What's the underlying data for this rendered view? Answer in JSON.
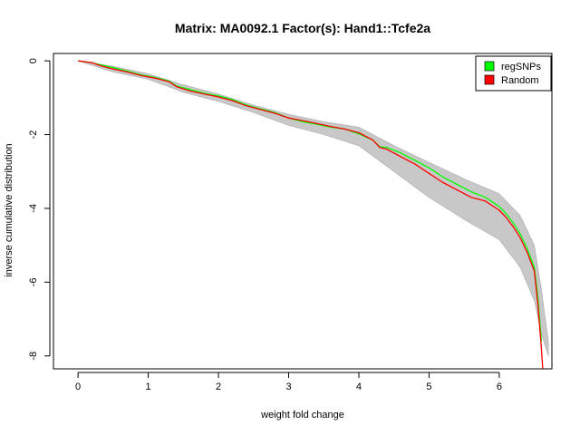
{
  "chart_data": {
    "type": "line",
    "title": "Matrix: MA0092.1 Factor(s): Hand1::Tcfe2a",
    "xlabel": "weight fold change",
    "ylabel": "inverse cumulative distribution",
    "xlim": [
      -0.35,
      6.75
    ],
    "ylim": [
      -8.35,
      0.2
    ],
    "xticks": [
      0,
      1,
      2,
      3,
      4,
      5,
      6
    ],
    "yticks": [
      0,
      -2,
      -4,
      -6,
      -8
    ],
    "grid": false,
    "legend_position": "top-right",
    "legend": [
      {
        "label": "regSNPs",
        "color": "#00ff00"
      },
      {
        "label": "Random",
        "color": "#ff0000"
      }
    ],
    "background_band": {
      "name": "random permutations",
      "color": "#bebebe",
      "x": [
        0.0,
        0.5,
        1.0,
        1.5,
        2.0,
        2.5,
        3.0,
        3.5,
        4.0,
        4.5,
        5.0,
        5.5,
        6.0,
        6.3,
        6.5,
        6.6,
        6.7
      ],
      "upper": [
        0.0,
        -0.15,
        -0.35,
        -0.65,
        -0.9,
        -1.2,
        -1.45,
        -1.65,
        -1.8,
        -2.3,
        -2.75,
        -3.2,
        -3.6,
        -4.2,
        -5.0,
        -6.2,
        -7.6
      ],
      "lower": [
        0.0,
        -0.3,
        -0.5,
        -0.85,
        -1.1,
        -1.4,
        -1.75,
        -2.0,
        -2.3,
        -3.0,
        -3.7,
        -4.3,
        -4.85,
        -5.6,
        -6.5,
        -7.4,
        -8.0
      ]
    },
    "series": [
      {
        "name": "regSNPs",
        "color": "#00ff00",
        "x": [
          0.0,
          0.2,
          0.35,
          0.5,
          0.7,
          0.9,
          1.1,
          1.3,
          1.4,
          1.6,
          1.8,
          2.0,
          2.2,
          2.4,
          2.6,
          2.8,
          3.0,
          3.2,
          3.4,
          3.6,
          3.8,
          4.0,
          4.2,
          4.3,
          4.4,
          4.6,
          4.8,
          5.0,
          5.2,
          5.4,
          5.6,
          5.8,
          6.0,
          6.1,
          6.2,
          6.3,
          6.4,
          6.5,
          6.55,
          6.6
        ],
        "y": [
          0.0,
          -0.05,
          -0.12,
          -0.18,
          -0.28,
          -0.38,
          -0.45,
          -0.55,
          -0.68,
          -0.78,
          -0.88,
          -0.95,
          -1.05,
          -1.2,
          -1.3,
          -1.4,
          -1.55,
          -1.65,
          -1.72,
          -1.8,
          -1.85,
          -1.98,
          -2.15,
          -2.33,
          -2.35,
          -2.5,
          -2.7,
          -2.9,
          -3.15,
          -3.35,
          -3.55,
          -3.7,
          -3.95,
          -4.15,
          -4.4,
          -4.7,
          -5.1,
          -5.6,
          -6.4,
          -7.6
        ]
      },
      {
        "name": "Random",
        "color": "#ff0000",
        "x": [
          0.0,
          0.2,
          0.35,
          0.5,
          0.7,
          0.9,
          1.1,
          1.3,
          1.4,
          1.6,
          1.8,
          2.0,
          2.2,
          2.4,
          2.6,
          2.8,
          3.0,
          3.2,
          3.4,
          3.6,
          3.8,
          4.0,
          4.2,
          4.3,
          4.4,
          4.6,
          4.8,
          5.0,
          5.2,
          5.4,
          5.6,
          5.8,
          6.0,
          6.1,
          6.2,
          6.3,
          6.4,
          6.5,
          6.55,
          6.6,
          6.62
        ],
        "y": [
          0.0,
          -0.05,
          -0.15,
          -0.22,
          -0.3,
          -0.4,
          -0.47,
          -0.57,
          -0.7,
          -0.82,
          -0.9,
          -0.98,
          -1.08,
          -1.22,
          -1.32,
          -1.42,
          -1.55,
          -1.62,
          -1.7,
          -1.78,
          -1.85,
          -1.95,
          -2.15,
          -2.35,
          -2.4,
          -2.6,
          -2.8,
          -3.05,
          -3.3,
          -3.5,
          -3.7,
          -3.8,
          -4.05,
          -4.25,
          -4.5,
          -4.8,
          -5.2,
          -5.7,
          -6.6,
          -7.8,
          -8.35
        ]
      }
    ]
  }
}
